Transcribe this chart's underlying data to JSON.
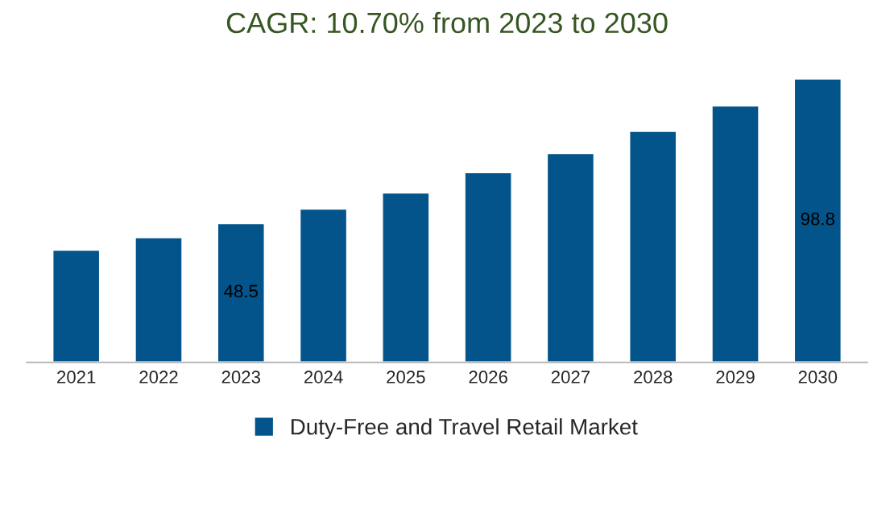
{
  "chart_data": {
    "type": "bar",
    "title": "CAGR: 10.70% from 2023 to 2030",
    "categories": [
      "2021",
      "2022",
      "2023",
      "2024",
      "2025",
      "2026",
      "2027",
      "2028",
      "2029",
      "2030"
    ],
    "series": [
      {
        "name": "Duty-Free and Travel Retail Market",
        "color": "#02548a",
        "values": [
          39.2,
          43.6,
          48.5,
          53.5,
          59.1,
          66.2,
          72.9,
          80.6,
          89.4,
          98.8
        ],
        "value_labels": [
          null,
          null,
          "48.5",
          null,
          null,
          null,
          null,
          null,
          null,
          "98.8"
        ]
      }
    ],
    "legend": "bottom",
    "grid": false
  }
}
